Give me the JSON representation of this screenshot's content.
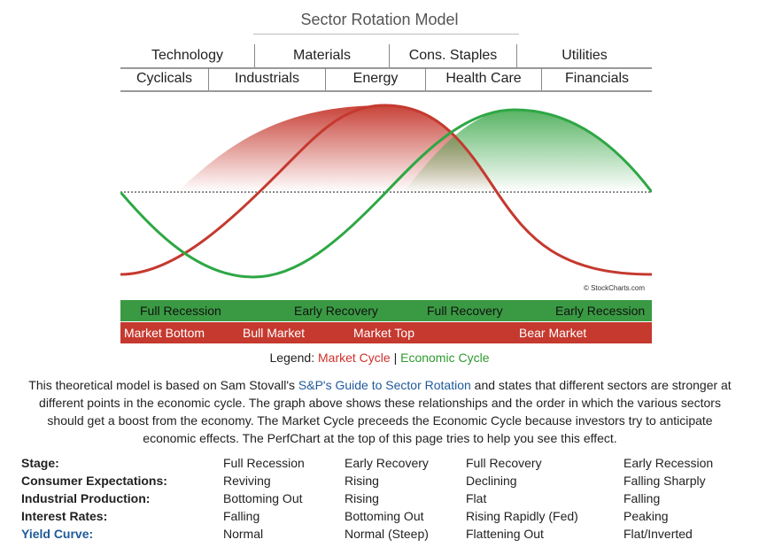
{
  "title": "Sector Rotation Model",
  "sectors_row1": [
    "Technology",
    "Materials",
    "Cons. Staples",
    "Utilities"
  ],
  "sectors_row2": [
    "Cyclicals",
    "Industrials",
    "Energy",
    "Health Care",
    "Financials"
  ],
  "copyright": "© StockCharts.com",
  "economic_phases": [
    "Full Recession",
    "Early Recovery",
    "Full Recovery",
    "Early Recession"
  ],
  "market_phases": [
    "Market Bottom",
    "Bull Market",
    "Market Top",
    "Bear Market"
  ],
  "legend": {
    "prefix": "Legend:",
    "market": "Market Cycle",
    "separator": "|",
    "economic": "Economic Cycle"
  },
  "description": {
    "part1": "This theoretical model is based on Sam Stovall's ",
    "link": "S&P's Guide to Sector Rotation",
    "part2": " and states that different sectors are stronger at different points in the economic cycle. The graph above shows these relationships and the order in which the various sectors should get a boost from the economy. The Market Cycle preceeds the Economic Cycle because investors try to anticipate economic effects. The PerfChart at the top of this page tries to help you see this effect."
  },
  "stages_table": {
    "rows": [
      {
        "label": "Stage:",
        "values": [
          "Full Recession",
          "Early Recovery",
          "Full Recovery",
          "Early Recession"
        ]
      },
      {
        "label": "Consumer Expectations:",
        "values": [
          "Reviving",
          "Rising",
          "Declining",
          "Falling Sharply"
        ]
      },
      {
        "label": "Industrial Production:",
        "values": [
          "Bottoming Out",
          "Rising",
          "Flat",
          "Falling"
        ]
      },
      {
        "label": "Interest Rates:",
        "values": [
          "Falling",
          "Bottoming Out",
          "Rising Rapidly (Fed)",
          "Peaking"
        ]
      },
      {
        "label": "Yield Curve:",
        "values": [
          "Normal",
          "Normal (Steep)",
          "Flattening Out",
          "Flat/Inverted"
        ]
      }
    ]
  },
  "colors": {
    "market_cycle": "#c5392f",
    "economic_cycle": "#2e9b2e",
    "link": "#1f5a9a"
  }
}
